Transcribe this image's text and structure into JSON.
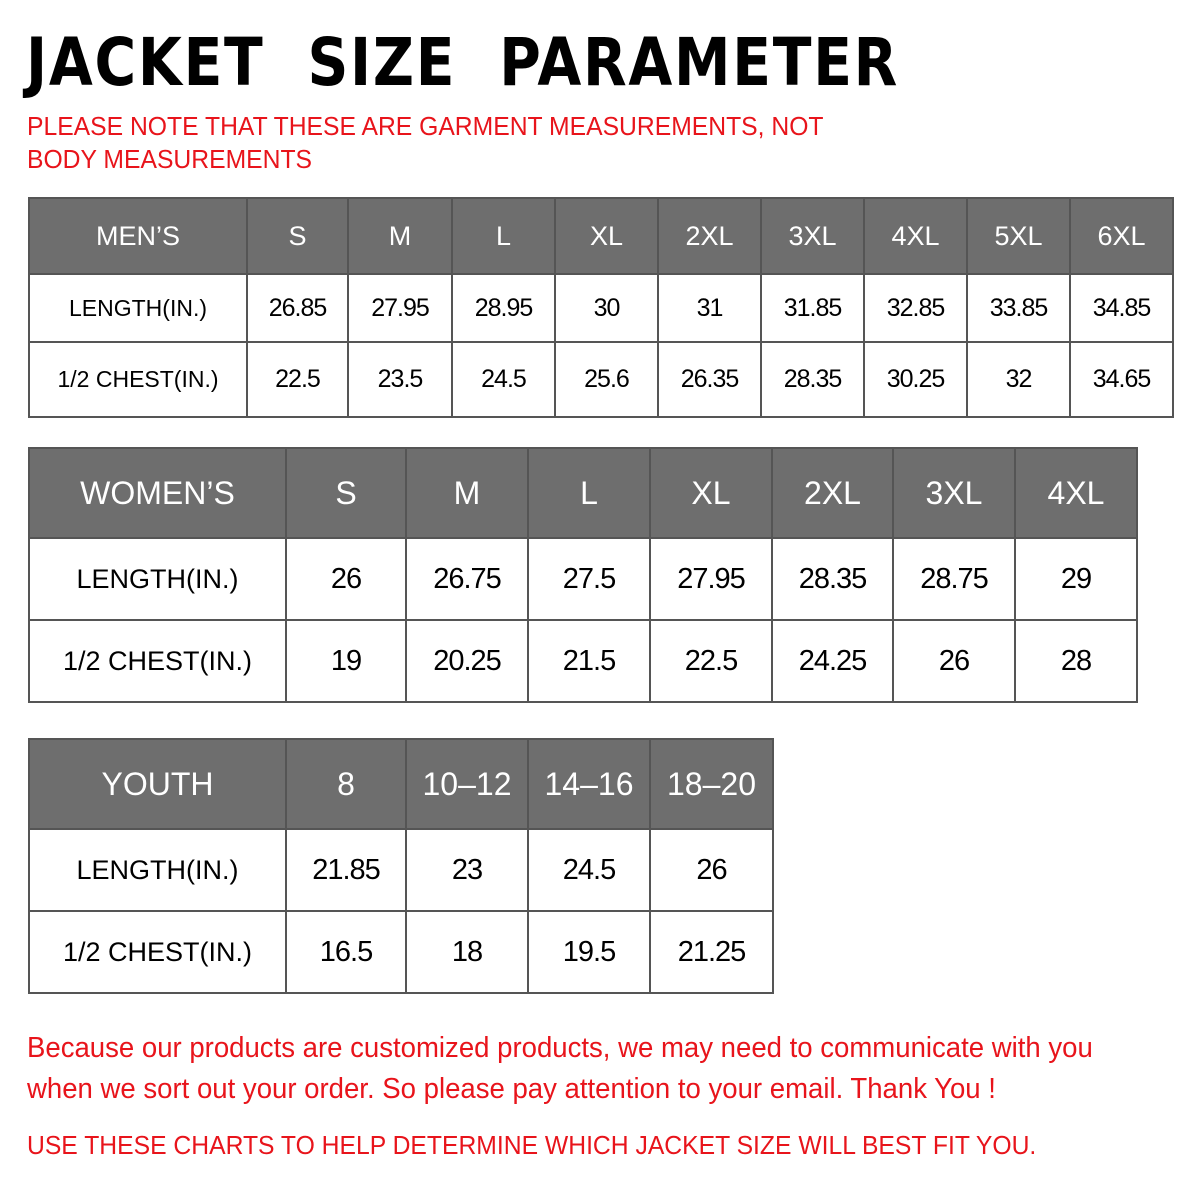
{
  "title": "JACKET  SIZE  PARAMETER",
  "note": "PLEASE NOTE THAT THESE ARE GARMENT MEASUREMENTS, NOT BODY MEASUREMENTS",
  "colors": {
    "header_bg": "#6e6e6e",
    "accent_red": "#e8141b"
  },
  "mens": {
    "header": [
      "MEN’S",
      "S",
      "M",
      "L",
      "XL",
      "2XL",
      "3XL",
      "4XL",
      "5XL",
      "6XL"
    ],
    "rows": [
      [
        "LENGTH(IN.)",
        "26.85",
        "27.95",
        "28.95",
        "30",
        "31",
        "31.85",
        "32.85",
        "33.85",
        "34.85"
      ],
      [
        "1/2 CHEST(IN.)",
        "22.5",
        "23.5",
        "24.5",
        "25.6",
        "26.35",
        "28.35",
        "30.25",
        "32",
        "34.65"
      ]
    ]
  },
  "womens": {
    "header": [
      "WOMEN’S",
      "S",
      "M",
      "L",
      "XL",
      "2XL",
      "3XL",
      "4XL"
    ],
    "rows": [
      [
        "LENGTH(IN.)",
        "26",
        "26.75",
        "27.5",
        "27.95",
        "28.35",
        "28.75",
        "29"
      ],
      [
        "1/2 CHEST(IN.)",
        "19",
        "20.25",
        "21.5",
        "22.5",
        "24.25",
        "26",
        "28"
      ]
    ]
  },
  "youth": {
    "header": [
      "YOUTH",
      "8",
      "10–12",
      "14–16",
      "18–20"
    ],
    "rows": [
      [
        "LENGTH(IN.)",
        "21.85",
        "23",
        "24.5",
        "26"
      ],
      [
        "1/2 CHEST(IN.)",
        "16.5",
        "18",
        "19.5",
        "21.25"
      ]
    ]
  },
  "message": "Because our products are customized products, we may need to communicate with you when we sort out your order. So please pay attention to your email. Thank You !",
  "footer": "USE THESE CHARTS TO HELP DETERMINE WHICH JACKET SIZE WILL BEST FIT YOU."
}
